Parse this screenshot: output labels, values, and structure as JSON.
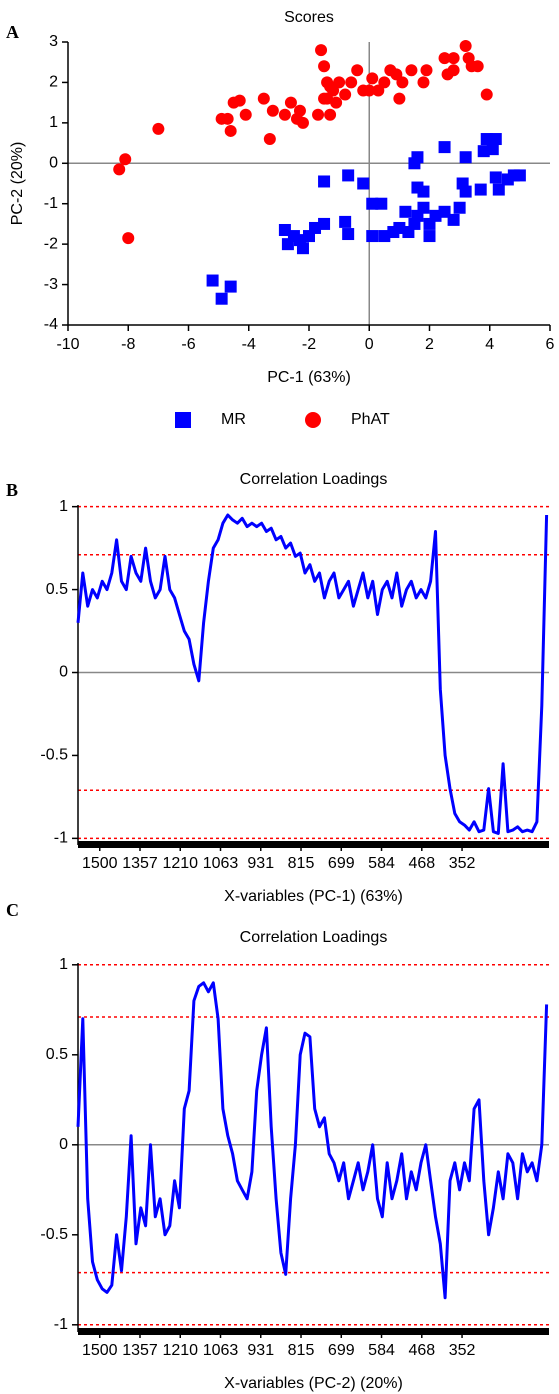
{
  "chart_data": [
    {
      "type": "scatter",
      "panel_label": "A",
      "title": "Scores",
      "x_label": "PC-1 (63%)",
      "y_label": "PC-2 (20%)",
      "xlim": [
        -10,
        6
      ],
      "xticks": [
        -10,
        -8,
        -6,
        -4,
        -2,
        0,
        2,
        4,
        6
      ],
      "ylim": [
        -4,
        3
      ],
      "yticks": [
        -4,
        -3,
        -2,
        -1,
        0,
        1,
        2,
        3
      ],
      "series": [
        {
          "name": "MR",
          "color": "#0000ff",
          "marker": "square",
          "x": [
            -5.2,
            -4.9,
            -4.6,
            -2.8,
            -2.7,
            -2.5,
            -2.2,
            -2.0,
            -2.3,
            -1.8,
            -1.5,
            -1.5,
            -0.8,
            -0.7,
            -0.7,
            -0.2,
            0.1,
            0.4,
            0.1,
            0.5,
            0.8,
            1.0,
            1.3,
            1.5,
            1.2,
            1.6,
            1.8,
            2.0,
            2.2,
            2.5,
            2.8,
            3.0,
            3.2,
            2.0,
            1.5,
            1.6,
            1.6,
            1.8,
            2.5,
            3.2,
            3.8,
            3.9,
            4.2,
            4.1,
            3.7,
            4.3,
            4.2,
            4.6,
            4.8,
            5.0,
            3.1
          ],
          "values": [
            -2.9,
            -3.35,
            -3.05,
            -1.65,
            -2.0,
            -1.8,
            -2.1,
            -1.8,
            -1.9,
            -1.6,
            -0.45,
            -1.5,
            -1.45,
            -1.75,
            -0.3,
            -0.5,
            -1.0,
            -1.0,
            -1.8,
            -1.8,
            -1.7,
            -1.6,
            -1.7,
            -1.5,
            -1.2,
            -1.3,
            -1.1,
            -1.5,
            -1.3,
            -1.2,
            -1.4,
            -1.1,
            -0.7,
            -1.8,
            0.0,
            0.15,
            -0.6,
            -0.7,
            0.4,
            0.15,
            0.3,
            0.6,
            0.6,
            0.35,
            -0.65,
            -0.65,
            -0.35,
            -0.4,
            -0.3,
            -0.3,
            -0.5
          ]
        },
        {
          "name": "PhAT",
          "color": "#ff0000",
          "marker": "circle",
          "x": [
            -8.3,
            -8.1,
            -8.0,
            -7.0,
            -4.9,
            -4.7,
            -4.5,
            -4.3,
            -4.6,
            -4.1,
            -3.5,
            -3.3,
            -3.2,
            -2.8,
            -2.6,
            -2.4,
            -2.3,
            -2.2,
            -1.7,
            -1.6,
            -1.5,
            -1.3,
            -1.4,
            -1.3,
            -1.1,
            -1.0,
            -0.8,
            -0.6,
            -0.4,
            -0.2,
            0.0,
            0.1,
            0.3,
            0.5,
            0.7,
            0.9,
            1.1,
            1.0,
            1.4,
            1.8,
            1.9,
            2.5,
            2.6,
            2.8,
            2.8,
            3.2,
            3.3,
            3.4,
            3.6,
            3.9,
            -1.5,
            -1.2,
            -1.4
          ],
          "values": [
            -0.15,
            0.1,
            -1.85,
            0.85,
            1.1,
            1.1,
            1.5,
            1.55,
            0.8,
            1.2,
            1.6,
            0.6,
            1.3,
            1.2,
            1.5,
            1.1,
            1.3,
            1.0,
            1.2,
            2.8,
            2.4,
            1.9,
            1.6,
            1.2,
            1.5,
            2.0,
            1.7,
            2.0,
            2.3,
            1.8,
            1.8,
            2.1,
            1.8,
            2.0,
            2.3,
            2.2,
            2.0,
            1.6,
            2.3,
            2.0,
            2.3,
            2.6,
            2.2,
            2.3,
            2.6,
            2.9,
            2.6,
            2.4,
            2.4,
            1.7,
            1.6,
            1.8,
            2.0
          ]
        }
      ]
    },
    {
      "type": "line",
      "panel_label": "B",
      "title": "Correlation Loadings",
      "x_label": "X-variables (PC-1) (63%)",
      "xlim": [
        1,
        586
      ],
      "xticks": [
        {
          "value": 28,
          "label": "1500"
        },
        {
          "value": 78,
          "label": "1357"
        },
        {
          "value": 128,
          "label": "1210"
        },
        {
          "value": 178,
          "label": "1063"
        },
        {
          "value": 228,
          "label": "931"
        },
        {
          "value": 278,
          "label": "815"
        },
        {
          "value": 328,
          "label": "699"
        },
        {
          "value": 378,
          "label": "584"
        },
        {
          "value": 428,
          "label": "468"
        },
        {
          "value": 478,
          "label": "352"
        }
      ],
      "ylim": [
        -1.04,
        1.01
      ],
      "yticks": [
        -1,
        -0.5,
        0,
        0.5,
        1
      ],
      "ref_lines": [
        1,
        0.71,
        -0.71,
        -1
      ],
      "ref_color": "#ff0000",
      "series": [
        {
          "color": "#0000ff",
          "x": [
            1,
            7,
            13,
            19,
            25,
            31,
            37,
            43,
            49,
            55,
            61,
            67,
            73,
            79,
            85,
            91,
            97,
            103,
            109,
            115,
            121,
            127,
            133,
            139,
            145,
            151,
            157,
            163,
            169,
            175,
            181,
            187,
            193,
            199,
            205,
            211,
            217,
            223,
            229,
            235,
            241,
            247,
            253,
            259,
            265,
            271,
            277,
            283,
            289,
            295,
            301,
            307,
            313,
            319,
            325,
            331,
            337,
            343,
            349,
            355,
            361,
            367,
            373,
            379,
            385,
            391,
            397,
            403,
            409,
            415,
            421,
            427,
            433,
            439,
            445,
            451,
            457,
            463,
            469,
            475,
            481,
            487,
            493,
            499,
            505,
            511,
            517,
            523,
            529,
            535,
            541,
            547,
            553,
            559,
            565,
            571,
            577,
            583
          ],
          "values": [
            0.3,
            0.6,
            0.4,
            0.5,
            0.45,
            0.55,
            0.5,
            0.6,
            0.8,
            0.55,
            0.5,
            0.7,
            0.6,
            0.55,
            0.75,
            0.55,
            0.45,
            0.5,
            0.7,
            0.5,
            0.45,
            0.35,
            0.25,
            0.2,
            0.05,
            -0.05,
            0.3,
            0.55,
            0.75,
            0.8,
            0.9,
            0.95,
            0.92,
            0.9,
            0.93,
            0.88,
            0.9,
            0.88,
            0.9,
            0.85,
            0.87,
            0.8,
            0.82,
            0.75,
            0.78,
            0.7,
            0.72,
            0.6,
            0.65,
            0.55,
            0.6,
            0.45,
            0.55,
            0.6,
            0.45,
            0.5,
            0.55,
            0.4,
            0.5,
            0.6,
            0.45,
            0.55,
            0.35,
            0.5,
            0.55,
            0.45,
            0.6,
            0.4,
            0.5,
            0.55,
            0.45,
            0.5,
            0.45,
            0.55,
            0.85,
            -0.1,
            -0.5,
            -0.7,
            -0.85,
            -0.9,
            -0.92,
            -0.95,
            -0.9,
            -0.96,
            -0.95,
            -0.7,
            -0.96,
            -0.97,
            -0.55,
            -0.96,
            -0.95,
            -0.93,
            -0.96,
            -0.95,
            -0.96,
            -0.9,
            -0.2,
            0.95
          ]
        }
      ]
    },
    {
      "type": "line",
      "panel_label": "C",
      "title": "Correlation Loadings",
      "x_label": "X-variables (PC-2) (20%)",
      "xlim": [
        1,
        586
      ],
      "xticks": [
        {
          "value": 28,
          "label": "1500"
        },
        {
          "value": 78,
          "label": "1357"
        },
        {
          "value": 128,
          "label": "1210"
        },
        {
          "value": 178,
          "label": "1063"
        },
        {
          "value": 228,
          "label": "931"
        },
        {
          "value": 278,
          "label": "815"
        },
        {
          "value": 328,
          "label": "699"
        },
        {
          "value": 378,
          "label": "584"
        },
        {
          "value": 428,
          "label": "468"
        },
        {
          "value": 478,
          "label": "352"
        }
      ],
      "ylim": [
        -1.04,
        1.01
      ],
      "yticks": [
        -1,
        -0.5,
        0,
        0.5,
        1
      ],
      "ref_lines": [
        1,
        0.71,
        -0.71,
        -1
      ],
      "ref_color": "#ff0000",
      "series": [
        {
          "color": "#0000ff",
          "x": [
            1,
            7,
            13,
            19,
            25,
            31,
            37,
            43,
            49,
            55,
            61,
            67,
            73,
            79,
            85,
            91,
            97,
            103,
            109,
            115,
            121,
            127,
            133,
            139,
            145,
            151,
            157,
            163,
            169,
            175,
            181,
            187,
            193,
            199,
            205,
            211,
            217,
            223,
            229,
            235,
            241,
            247,
            253,
            259,
            265,
            271,
            277,
            283,
            289,
            295,
            301,
            307,
            313,
            319,
            325,
            331,
            337,
            343,
            349,
            355,
            361,
            367,
            373,
            379,
            385,
            391,
            397,
            403,
            409,
            415,
            421,
            427,
            433,
            439,
            445,
            451,
            457,
            463,
            469,
            475,
            481,
            487,
            493,
            499,
            505,
            511,
            517,
            523,
            529,
            535,
            541,
            547,
            553,
            559,
            565,
            571,
            577,
            583
          ],
          "values": [
            0.1,
            0.7,
            -0.3,
            -0.65,
            -0.75,
            -0.8,
            -0.82,
            -0.78,
            -0.5,
            -0.7,
            -0.4,
            0.05,
            -0.55,
            -0.35,
            -0.45,
            0.0,
            -0.4,
            -0.3,
            -0.5,
            -0.45,
            -0.2,
            -0.35,
            0.2,
            0.3,
            0.8,
            0.88,
            0.9,
            0.85,
            0.9,
            0.7,
            0.2,
            0.05,
            -0.05,
            -0.2,
            -0.25,
            -0.3,
            -0.15,
            0.3,
            0.5,
            0.65,
            0.1,
            -0.3,
            -0.6,
            -0.72,
            -0.3,
            0.0,
            0.5,
            0.62,
            0.6,
            0.2,
            0.1,
            0.15,
            -0.05,
            -0.1,
            -0.2,
            -0.1,
            -0.3,
            -0.2,
            -0.1,
            -0.25,
            -0.15,
            0.0,
            -0.3,
            -0.4,
            -0.1,
            -0.3,
            -0.2,
            -0.05,
            -0.3,
            -0.15,
            -0.25,
            -0.1,
            0.0,
            -0.2,
            -0.4,
            -0.55,
            -0.85,
            -0.2,
            -0.1,
            -0.25,
            -0.1,
            -0.2,
            0.2,
            0.25,
            -0.2,
            -0.5,
            -0.35,
            -0.15,
            -0.3,
            -0.05,
            -0.1,
            -0.3,
            -0.05,
            -0.15,
            -0.1,
            -0.2,
            0.0,
            0.78
          ]
        }
      ]
    }
  ]
}
